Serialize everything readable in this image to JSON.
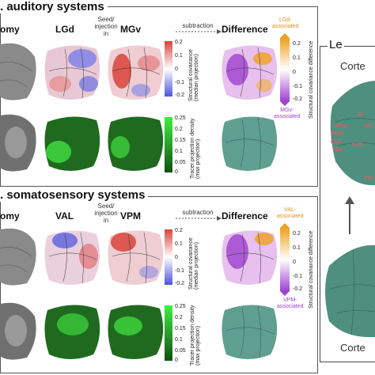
{
  "panel1": {
    "title": ". auditory systems",
    "cols": {
      "anatomy": "omy",
      "a": "LGd",
      "seed": "Seed/\ninjection\nin",
      "b": "MGv",
      "subtraction": "subtraction",
      "difference": "Difference"
    },
    "assoc_top": "LGd-\nassociated",
    "assoc_bottom": "MGv-\nassociated",
    "cov_ticks": [
      "0.2",
      "0.1",
      "0",
      "-0.1",
      "-0.2"
    ],
    "cov_title": "Structural covariance\n(median projection)",
    "tracer_ticks": [
      "0.25",
      "0.2",
      "0.15",
      "0.1",
      "0.05",
      "0"
    ],
    "tracer_title": "Tracer projection density\n(max projection)",
    "diff_ticks": [
      "0.2",
      "0.1",
      "0",
      "-0.1",
      "-0.2"
    ],
    "diff_title": "Structural covariance difference"
  },
  "panel2": {
    "title": ". somatosensory systems",
    "cols": {
      "anatomy": "omy",
      "a": "VAL",
      "seed": "Seed/\ninjection\nin",
      "b": "VPM",
      "subtraction": "subtraction",
      "difference": "Difference"
    },
    "assoc_top": "VAL-\nassociated",
    "assoc_bottom": "VPM-\nassociated",
    "cov_ticks": [
      "0.2",
      "0.1",
      "0",
      "-0.1",
      "-0.2"
    ],
    "cov_title": "Structural covariance\n(median projection)",
    "tracer_ticks": [
      "0.25",
      "0.2",
      "0.15",
      "0.1",
      "0.05",
      "0"
    ],
    "tracer_title": "Tracer projection density\n(max projection)",
    "diff_ticks": [
      "0.2",
      "0.1",
      "0",
      "-0.1",
      "-0.2"
    ],
    "diff_title": "Structural covariance difference"
  },
  "right": {
    "title": "Le",
    "top_label": "Corte",
    "bottom_label": "Corte",
    "areas": [
      "AI",
      "GU",
      "VISC",
      "PERI",
      "ECT",
      "TEa",
      "AUD",
      "VIS"
    ]
  },
  "colors": {
    "red": "#d8433a",
    "blue": "#4a55d8",
    "green": "#23a323",
    "orange": "#f0a020",
    "purple": "#a040d0",
    "teal": "#4f8f7f"
  }
}
